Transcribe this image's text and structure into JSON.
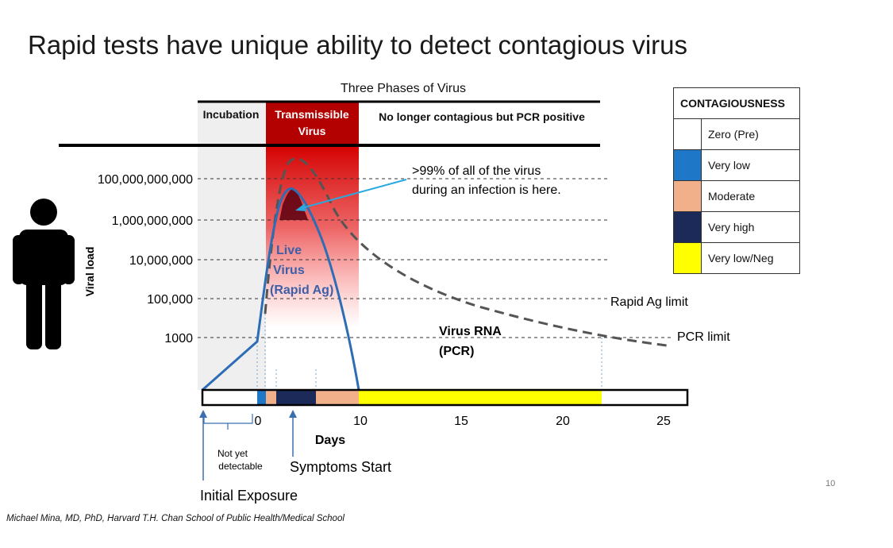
{
  "title": "Rapid tests have unique ability to detect contagious virus",
  "chart_title": "Three Phases of Virus",
  "phases": {
    "incubation": "Incubation",
    "transmissible_line1": "Transmissible",
    "transmissible_line2": "Virus",
    "post": "No longer contagious but PCR positive"
  },
  "y_axis_label": "Viral load",
  "y_ticks": [
    "100,000,000,000",
    "1,000,000,000",
    "10,000,000",
    "100,000",
    "1000"
  ],
  "x_axis_label": "Days",
  "x_ticks": [
    "0",
    "10",
    "15",
    "20",
    "25"
  ],
  "annotations": {
    "callout_line1": ">99% of all of the virus",
    "callout_line2": "during an infection is here.",
    "live_virus_line1": "Live",
    "live_virus_line2": "Virus",
    "live_virus_line3": "(Rapid Ag)",
    "rna_line1": "Virus RNA",
    "rna_line2": "(PCR)",
    "rapid_ag_limit": "Rapid Ag limit",
    "pcr_limit": "PCR limit",
    "not_yet_line1": "Not yet",
    "not_yet_line2": "detectable",
    "symptoms_start": "Symptoms Start",
    "initial_exposure": "Initial Exposure"
  },
  "legend": {
    "title": "CONTAGIOUSNESS",
    "items": [
      {
        "label": "Zero (Pre)",
        "color": "#ffffff"
      },
      {
        "label": "Very low",
        "color": "#1f77c8"
      },
      {
        "label": "Moderate",
        "color": "#f2b08a"
      },
      {
        "label": "Very high",
        "color": "#1c2a5a"
      },
      {
        "label": "Very low/Neg",
        "color": "#ffff00"
      }
    ]
  },
  "colors": {
    "live_curve": "#2d6db5",
    "pcr_curve": "#555555",
    "transmissible_header": "#b30000",
    "incubation_band": "#efefef"
  },
  "footer": "Michael Mina, MD, PhD, Harvard T.H. Chan School of Public Health/Medical School",
  "page_number": "10"
}
